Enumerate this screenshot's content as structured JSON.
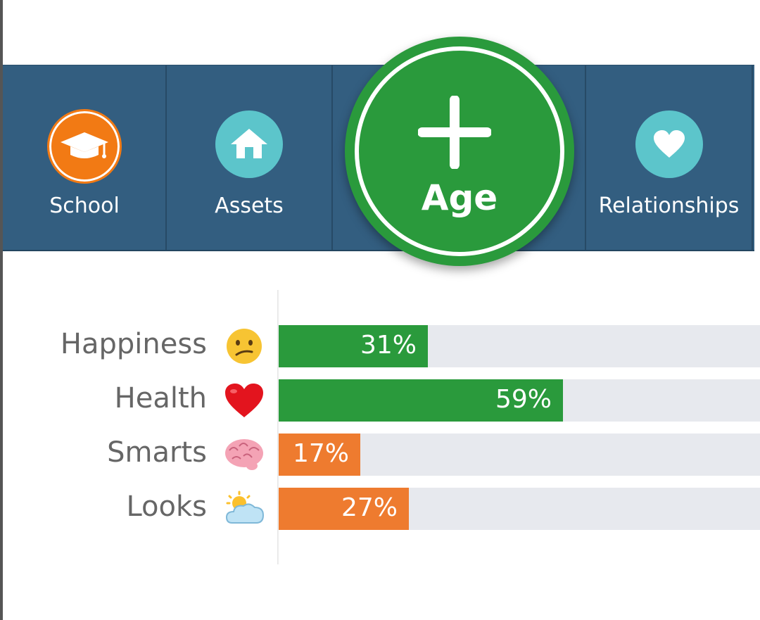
{
  "nav": {
    "items": [
      {
        "label": "School",
        "icon": "graduation-cap-icon"
      },
      {
        "label": "Assets",
        "icon": "house-icon"
      },
      {
        "label": "Relationships",
        "icon": "heart-icon"
      }
    ],
    "age_button": {
      "label": "Age",
      "icon": "plus-icon"
    }
  },
  "stats": [
    {
      "label": "Happiness",
      "emoji": "confused-face-icon",
      "value": 31,
      "display": "31%",
      "color": "#2a9a3c"
    },
    {
      "label": "Health",
      "emoji": "red-heart-icon",
      "value": 59,
      "display": "59%",
      "color": "#2a9a3c"
    },
    {
      "label": "Smarts",
      "emoji": "brain-icon",
      "value": 17,
      "display": "17%",
      "color": "#ee7b2f"
    },
    {
      "label": "Looks",
      "emoji": "sun-behind-cloud-icon",
      "value": 27,
      "display": "27%",
      "color": "#ee7b2f"
    }
  ],
  "colors": {
    "navbar": "#335e80",
    "good": "#2a9a3c",
    "warning": "#ee7b2f",
    "track": "#e7e9ee",
    "school_accent": "#f27a14",
    "teal_accent": "#5cc5cb"
  }
}
